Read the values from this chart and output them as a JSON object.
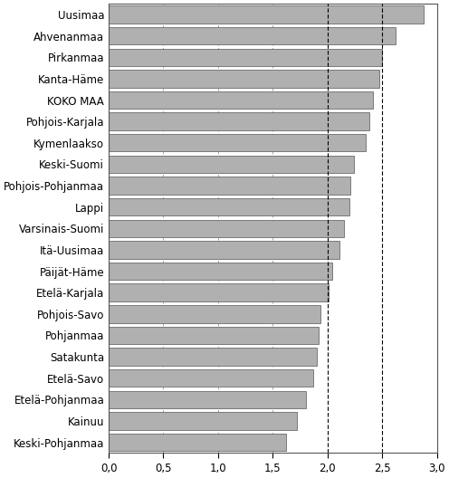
{
  "categories": [
    "Keski-Pohjanmaa",
    "Kainuu",
    "Etelä-Pohjanmaa",
    "Etelä-Savo",
    "Satakunta",
    "Pohjanmaa",
    "Pohjois-Savo",
    "Etelä-Karjala",
    "Päijät-Häme",
    "Itä-Uusimaa",
    "Varsinais-Suomi",
    "Lappi",
    "Pohjois-Pohjanmaa",
    "Keski-Suomi",
    "Kymenlaakso",
    "Pohjois-Karjala",
    "KOKO MAA",
    "Kanta-Häme",
    "Pirkanmaa",
    "Ahvenanmaa",
    "Uusimaa"
  ],
  "values": [
    1.62,
    1.72,
    1.8,
    1.87,
    1.9,
    1.92,
    1.94,
    2.01,
    2.04,
    2.11,
    2.15,
    2.2,
    2.21,
    2.24,
    2.35,
    2.38,
    2.42,
    2.47,
    2.5,
    2.62,
    2.88
  ],
  "bar_color": "#b0b0b0",
  "bar_edgecolor": "#555555",
  "xlim": [
    0,
    3.0
  ],
  "xticks": [
    0.0,
    0.5,
    1.0,
    1.5,
    2.0,
    2.5,
    3.0
  ],
  "xticklabels": [
    "0,0",
    "0,5",
    "1,0",
    "1,5",
    "2,0",
    "2,5",
    "3,0"
  ],
  "vlines": [
    2.0,
    2.5
  ],
  "grid_dashes": [
    0.5,
    1.0
  ],
  "background_color": "#ffffff",
  "grid_color": "#999999",
  "fontsize_labels": 8.5,
  "fontsize_ticks": 8.5,
  "bar_height": 0.82
}
